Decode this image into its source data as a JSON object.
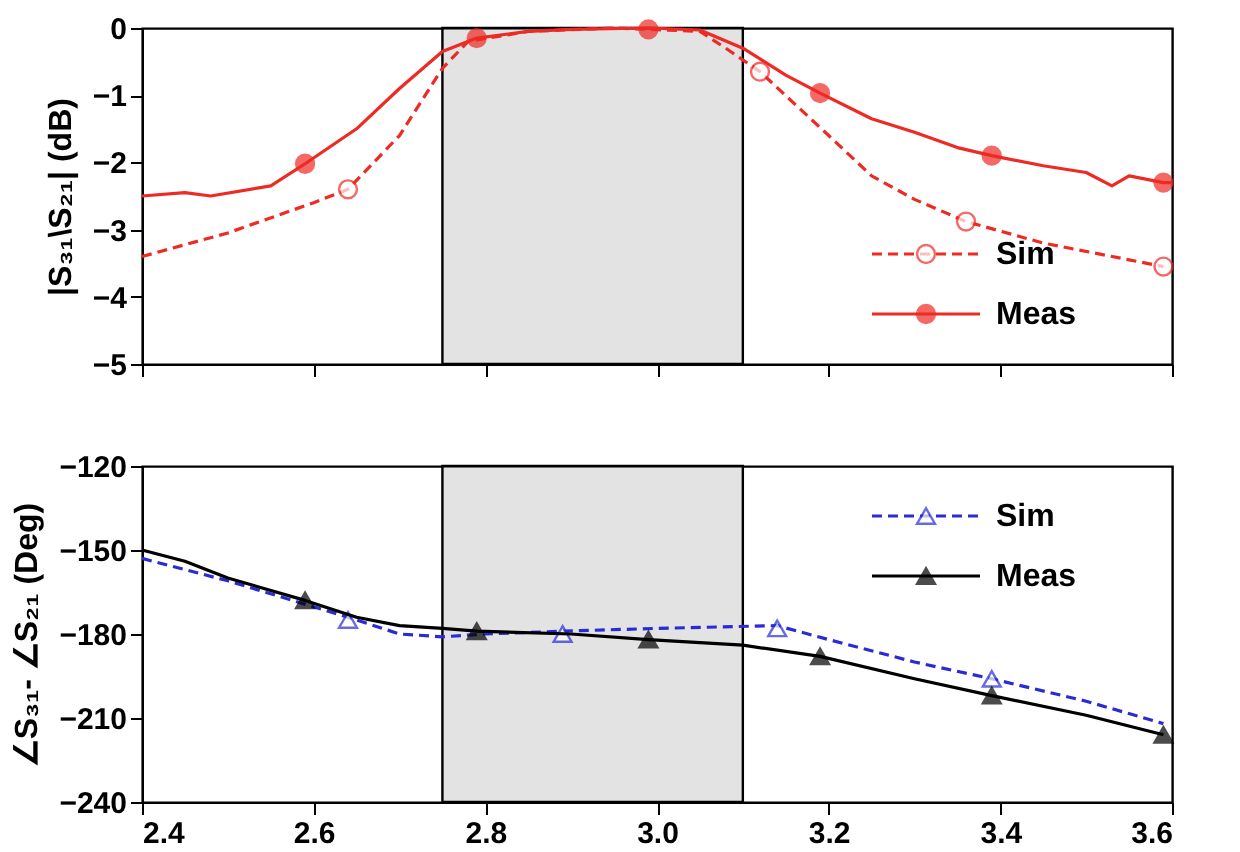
{
  "chart_data": [
    {
      "type": "line",
      "ylabel": "|S₃₁\\S₂₁| (dB)",
      "xlim": [
        2.4,
        3.6
      ],
      "xticks": [
        2.4,
        2.6,
        2.8,
        3.0,
        3.2,
        3.4,
        3.6
      ],
      "ylim": [
        -5,
        0
      ],
      "yticks": [
        -5,
        -4,
        -3,
        -2,
        -1,
        0
      ],
      "tick_labels": "y",
      "grid": false,
      "legend": "bottom right",
      "bands": [
        {
          "axis": "x",
          "from": 2.75,
          "to": 3.1,
          "color": "#d0d0d0"
        }
      ],
      "series": [
        {
          "name": "Sim",
          "type": "line",
          "line_style": "dashed",
          "color": "#ee2a24",
          "x": [
            2.4,
            2.5,
            2.6,
            2.64,
            2.7,
            2.75,
            2.78,
            2.85,
            2.95,
            3.05,
            3.08,
            3.12,
            3.2,
            3.25,
            3.3,
            3.36,
            3.45,
            3.55,
            3.59
          ],
          "values": [
            -3.4,
            -3.05,
            -2.6,
            -2.4,
            -1.6,
            -0.6,
            -0.2,
            -0.05,
            0,
            -0.05,
            -0.3,
            -0.65,
            -1.6,
            -2.2,
            -2.55,
            -2.88,
            -3.2,
            -3.45,
            -3.55
          ]
        },
        {
          "type": "scatter",
          "marker": "circle",
          "color": "#ee2a24",
          "x": [
            2.64,
            3.12,
            3.36,
            3.59
          ],
          "values": [
            -2.4,
            -0.65,
            -2.88,
            -3.55
          ]
        },
        {
          "name": "Meas",
          "type": "line",
          "line_style": "solid",
          "color": "#ee2a24",
          "x": [
            2.4,
            2.45,
            2.48,
            2.55,
            2.59,
            2.65,
            2.7,
            2.75,
            2.79,
            2.85,
            2.9,
            2.99,
            3.05,
            3.1,
            3.15,
            3.19,
            3.25,
            3.3,
            3.35,
            3.39,
            3.45,
            3.5,
            3.53,
            3.55,
            3.59,
            3.6
          ],
          "values": [
            -2.5,
            -2.45,
            -2.5,
            -2.35,
            -2.02,
            -1.5,
            -0.9,
            -0.35,
            -0.15,
            -0.05,
            -0.02,
            0,
            -0.03,
            -0.3,
            -0.7,
            -0.97,
            -1.35,
            -1.55,
            -1.78,
            -1.9,
            -2.05,
            -2.15,
            -2.35,
            -2.2,
            -2.3,
            -2.3
          ]
        },
        {
          "type": "scatter",
          "marker": "circle",
          "color": "#ee2a24",
          "x": [
            2.59,
            2.79,
            2.99,
            3.19,
            3.39,
            3.59
          ],
          "values": [
            -2.02,
            -0.15,
            -0.02,
            -0.97,
            -1.9,
            -2.3
          ]
        }
      ]
    },
    {
      "type": "line",
      "ylabel": "∠S₃₁- ∠S₂₁ (Deg)",
      "xlim": [
        2.4,
        3.6
      ],
      "xticks": [
        2.4,
        2.6,
        2.8,
        {
          "value": 3.0,
          "label": "3.0"
        },
        3.2,
        3.4,
        3.6
      ],
      "ylim": [
        -240,
        -120
      ],
      "yticks": [
        -240,
        -210,
        -180,
        -150,
        -120
      ],
      "grid": false,
      "legend": "top right",
      "bands": [
        {
          "axis": "x",
          "from": 2.75,
          "to": 3.1,
          "color": "#d0d0d0"
        }
      ],
      "series": [
        {
          "name": "Sim",
          "type": "line",
          "line_style": "dashed",
          "color": "#2b2bd6",
          "x": [
            2.4,
            2.5,
            2.64,
            2.7,
            2.75,
            2.8,
            2.89,
            3.0,
            3.14,
            3.2,
            3.3,
            3.39,
            3.5,
            3.59
          ],
          "values": [
            -153,
            -161,
            -174,
            -180,
            -181,
            -180,
            -179,
            -178,
            -177,
            -182,
            -190,
            -196,
            -204,
            -212
          ]
        },
        {
          "type": "scatter",
          "marker": "triangle",
          "color": "#2b2bd6",
          "x": [
            2.64,
            2.89,
            3.14,
            3.39
          ],
          "values": [
            -175,
            -180,
            -178,
            -196
          ]
        },
        {
          "name": "Meas",
          "type": "line",
          "line_style": "solid",
          "color": "#000000",
          "x": [
            2.4,
            2.45,
            2.5,
            2.59,
            2.65,
            2.7,
            2.75,
            2.79,
            2.9,
            2.99,
            3.1,
            3.19,
            3.3,
            3.39,
            3.5,
            3.59
          ],
          "values": [
            -150,
            -154,
            -160,
            -168,
            -174,
            -177,
            -178,
            -179,
            -180,
            -182,
            -184,
            -188,
            -196,
            -202,
            -209,
            -216
          ]
        },
        {
          "type": "scatter",
          "marker": "triangle",
          "color": "#000000",
          "x": [
            2.59,
            2.79,
            2.99,
            3.19,
            3.39,
            3.59
          ],
          "values": [
            -168,
            -179,
            -182,
            -188,
            -202,
            -216
          ]
        }
      ]
    }
  ]
}
